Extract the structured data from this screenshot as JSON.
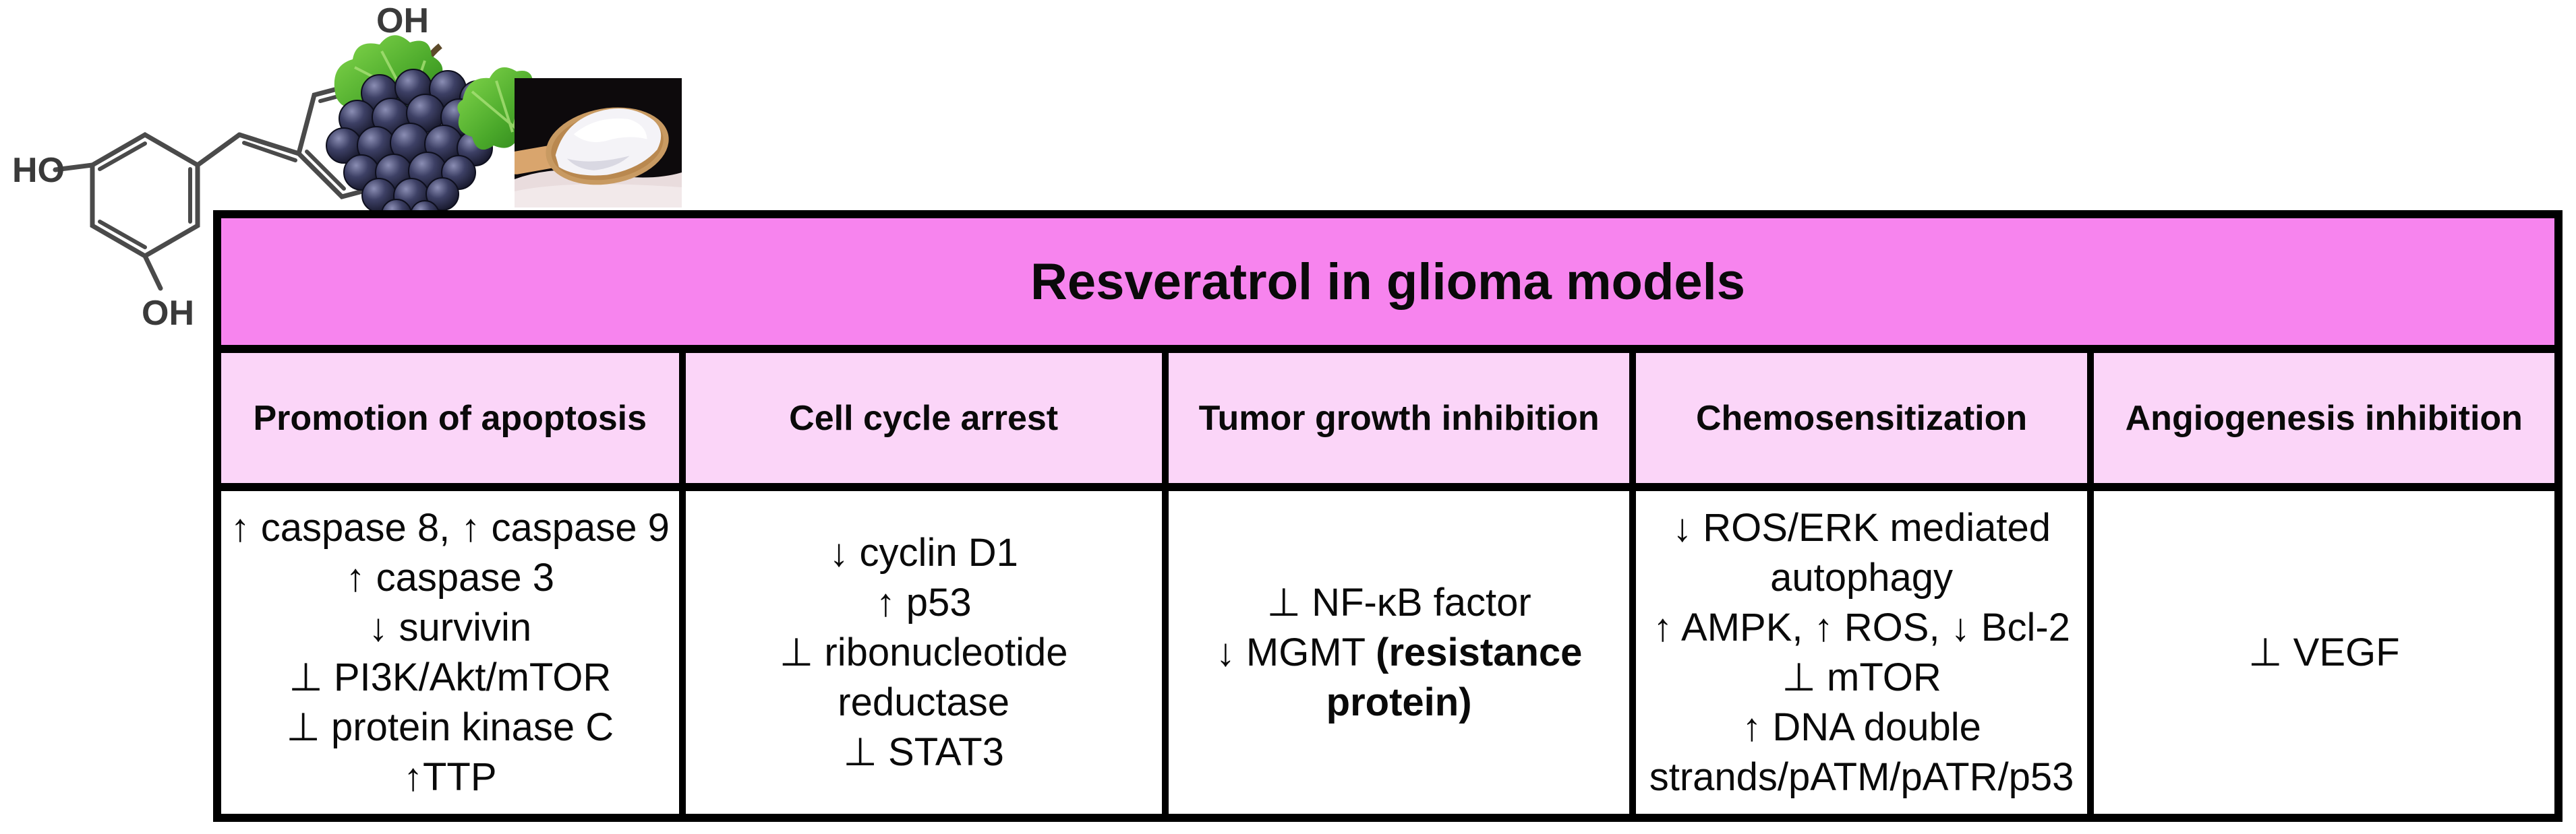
{
  "figure": {
    "title": "Resveratrol in glioma models"
  },
  "decoration": {
    "molecule": {
      "name": "resveratrol skeletal structure",
      "labels": {
        "top_oh": "OH",
        "left_ho": "HO",
        "bottom_oh": "OH"
      }
    },
    "grapes_alt": "bunch of dark purple grapes with green leaves",
    "powder_alt": "white resveratrol powder on a wooden spoon against black background"
  },
  "colors": {
    "title_bg": "#f784ee",
    "header_bg": "#fbd5f8",
    "border": "#000000",
    "body_bg": "#ffffff",
    "text": "#0a0a0a"
  },
  "table": {
    "column_widths": [
      "19.9%",
      "20.7%",
      "20.05%",
      "19.6%",
      "19.75%"
    ],
    "columns": [
      {
        "header": "Promotion of apoptosis",
        "lines": [
          [
            {
              "text": "↑ caspase 8, ↑ caspase 9"
            }
          ],
          [
            {
              "text": "↑ caspase 3"
            }
          ],
          [
            {
              "text": "↓ survivin"
            }
          ],
          [
            {
              "text": "⊥ PI3K/Akt/mTOR"
            }
          ],
          [
            {
              "text": "⊥ protein kinase C"
            }
          ],
          [
            {
              "text": "↑TTP"
            }
          ]
        ]
      },
      {
        "header": "Cell cycle arrest",
        "lines": [
          [
            {
              "text": "↓ cyclin D1"
            }
          ],
          [
            {
              "text": "↑ p53"
            }
          ],
          [
            {
              "text": "⊥ ribonucleotide"
            }
          ],
          [
            {
              "text": "reductase"
            }
          ],
          [
            {
              "text": "⊥ STAT3"
            }
          ]
        ]
      },
      {
        "header": "Tumor growth inhibition",
        "lines": [
          [
            {
              "text": "⊥ NF-κB factor"
            }
          ],
          [
            {
              "text": "↓ MGMT "
            },
            {
              "text": "(resistance",
              "bold": true
            }
          ],
          [
            {
              "text": "protein)",
              "bold": true
            }
          ]
        ]
      },
      {
        "header": "Chemosensitization",
        "lines": [
          [
            {
              "text": "↓ ROS/ERK mediated"
            }
          ],
          [
            {
              "text": "autophagy"
            }
          ],
          [
            {
              "text": "↑ AMPK, ↑ ROS, ↓ Bcl-2"
            }
          ],
          [
            {
              "text": "⊥ mTOR"
            }
          ],
          [
            {
              "text": "↑ DNA double"
            }
          ],
          [
            {
              "text": "strands/pATM/pATR/p53"
            }
          ]
        ]
      },
      {
        "header": "Angiogenesis inhibition",
        "lines": [
          [
            {
              "text": "⊥ VEGF"
            }
          ]
        ]
      }
    ]
  }
}
